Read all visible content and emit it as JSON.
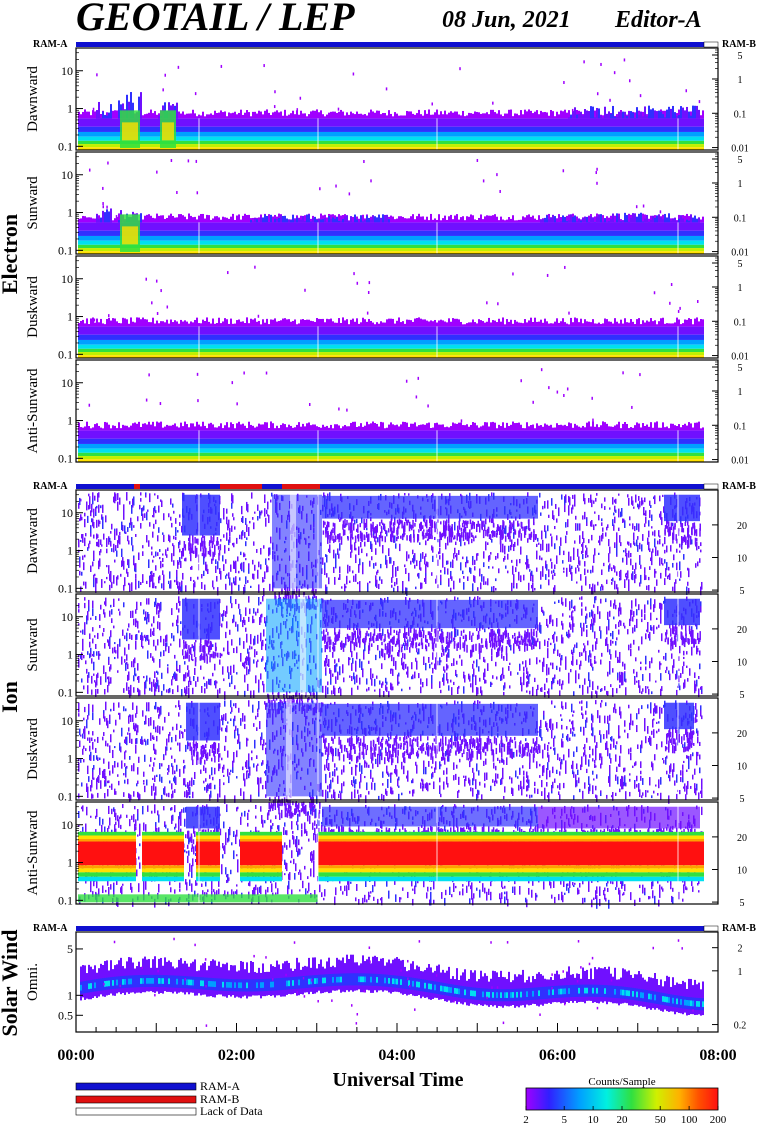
{
  "header": {
    "title": "GEOTAIL / LEP",
    "date": "08 Jun, 2021",
    "editor": "Editor-A"
  },
  "colors": {
    "ram_a": "#1010d0",
    "ram_b": "#e01010",
    "lack": "#ffffff"
  },
  "chart_data": [
    {
      "type": "heatmap",
      "group": "Electron",
      "ram_labels": [
        "RAM-A",
        "RAM-B"
      ],
      "panels": [
        {
          "ylabel": "Dawnward",
          "yticks": [
            "10",
            "1",
            "0.1"
          ],
          "rticks": [
            "5",
            "1",
            "0.1",
            "0.01"
          ]
        },
        {
          "ylabel": "Sunward",
          "yticks": [
            "10",
            "1",
            "0.1"
          ],
          "rticks": [
            "5",
            "1",
            "0.1",
            "0.01"
          ]
        },
        {
          "ylabel": "Duskward",
          "yticks": [
            "10",
            "1",
            "0.1"
          ],
          "rticks": [
            "5",
            "1",
            "0.1",
            "0.01"
          ]
        },
        {
          "ylabel": "Anti-Sunward",
          "yticks": [
            "10",
            "1",
            "0.1"
          ],
          "rticks": [
            "5",
            "1",
            "0.1",
            "0.01"
          ]
        }
      ]
    },
    {
      "type": "heatmap",
      "group": "Ion",
      "ram_labels": [
        "RAM-A",
        "RAM-B"
      ],
      "panels": [
        {
          "ylabel": "Dawnward",
          "yticks": [
            "10",
            "1",
            "0.1"
          ],
          "rticks": [
            "20",
            "10",
            "5"
          ]
        },
        {
          "ylabel": "Sunward",
          "yticks": [
            "10",
            "1",
            "0.1"
          ],
          "rticks": [
            "20",
            "10",
            "5"
          ]
        },
        {
          "ylabel": "Duskward",
          "yticks": [
            "10",
            "1",
            "0.1"
          ],
          "rticks": [
            "20",
            "10",
            "5"
          ]
        },
        {
          "ylabel": "Anti-Sunward",
          "yticks": [
            "10",
            "1",
            "0.1"
          ],
          "rticks": [
            "20",
            "10",
            "5"
          ]
        }
      ]
    },
    {
      "type": "heatmap",
      "group": "Solar Wind",
      "ram_labels": [
        "RAM-A",
        "RAM-B"
      ],
      "panels": [
        {
          "ylabel": "Omni.",
          "yticks": [
            "5",
            "1",
            "0.5"
          ],
          "rticks": [
            "2",
            "1",
            "0.2"
          ]
        }
      ]
    }
  ],
  "time_axis": {
    "label": "Universal Time",
    "ticks": [
      "00:00",
      "02:00",
      "04:00",
      "06:00",
      "08:00"
    ]
  },
  "legend": {
    "items": [
      "RAM-A",
      "RAM-B",
      "Lack of Data"
    ]
  },
  "colorbar": {
    "title": "Counts/Sample",
    "ticks": [
      "2",
      "5",
      "10",
      "20",
      "50",
      "100",
      "200"
    ]
  }
}
